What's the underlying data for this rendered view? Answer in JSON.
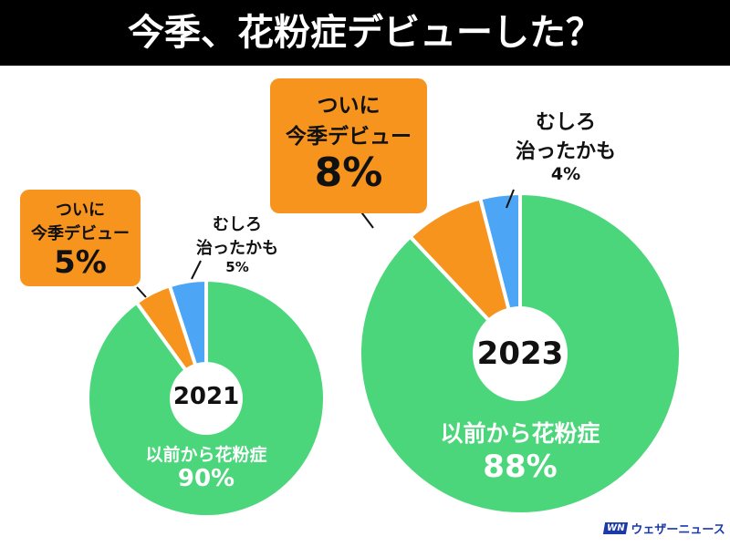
{
  "title": "今季、花粉症デビューした？",
  "colors": {
    "green": "#4cd67c",
    "orange": "#f7941d",
    "blue": "#4da6f5"
  },
  "chart_data": [
    {
      "type": "pie",
      "title": "2021",
      "categories": [
        "以前から花粉症",
        "ついに今季デビュー",
        "むしろ治ったかも"
      ],
      "values": [
        90,
        5,
        5
      ],
      "labels": {
        "green_name": "以前から花粉症",
        "green_value": "90%",
        "orange_line1": "ついに",
        "orange_line2": "今季デビュー",
        "orange_value": "5%",
        "blue_line1": "むしろ",
        "blue_line2": "治ったかも",
        "blue_value": "5%"
      }
    },
    {
      "type": "pie",
      "title": "2023",
      "categories": [
        "以前から花粉症",
        "ついに今季デビュー",
        "むしろ治ったかも"
      ],
      "values": [
        88,
        8,
        4
      ],
      "labels": {
        "green_name": "以前から花粉症",
        "green_value": "88%",
        "orange_line1": "ついに",
        "orange_line2": "今季デビュー",
        "orange_value": "8%",
        "blue_line1": "むしろ",
        "blue_line2": "治ったかも",
        "blue_value": "4%"
      }
    }
  ],
  "logo": {
    "mark": "WN",
    "text": "ウェザーニュース"
  }
}
